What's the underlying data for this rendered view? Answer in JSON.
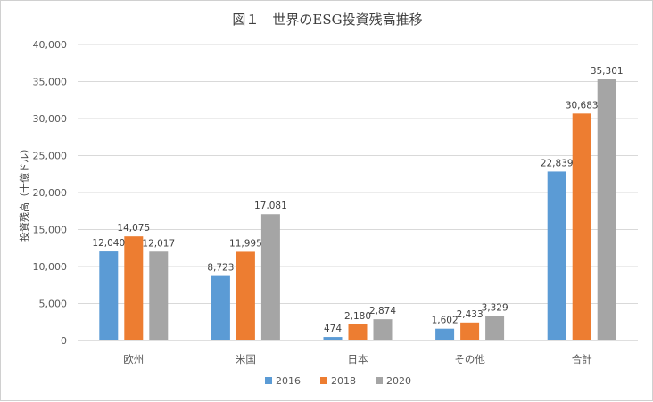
{
  "chart_data": {
    "type": "bar",
    "title": "図１　世界のESG投資残高推移",
    "ylabel": "投資残高（十億ドル）",
    "xlabel": "",
    "ylim": [
      0,
      40000
    ],
    "yticks": [
      "0",
      "5,000",
      "10,000",
      "15,000",
      "20,000",
      "25,000",
      "30,000",
      "35,000",
      "40,000"
    ],
    "ytick_values": [
      0,
      5000,
      10000,
      15000,
      20000,
      25000,
      30000,
      35000,
      40000
    ],
    "categories": [
      "欧州",
      "米国",
      "日本",
      "その他",
      "合計"
    ],
    "series": [
      {
        "name": "2016",
        "color": "#5b9bd5",
        "values": [
          12040,
          8723,
          474,
          1602,
          22839
        ],
        "labels": [
          "12,040",
          "8,723",
          "474",
          "1,602",
          "22,839"
        ]
      },
      {
        "name": "2018",
        "color": "#ed7d31",
        "values": [
          14075,
          11995,
          2180,
          2433,
          30683
        ],
        "labels": [
          "14,075",
          "11,995",
          "2,180",
          "2,433",
          "30,683"
        ]
      },
      {
        "name": "2020",
        "color": "#a5a5a5",
        "values": [
          12017,
          17081,
          2874,
          3329,
          35301
        ],
        "labels": [
          "12,017",
          "17,081",
          "2,874",
          "3,329",
          "35,301"
        ]
      }
    ],
    "grid": true,
    "legend_position": "bottom"
  }
}
